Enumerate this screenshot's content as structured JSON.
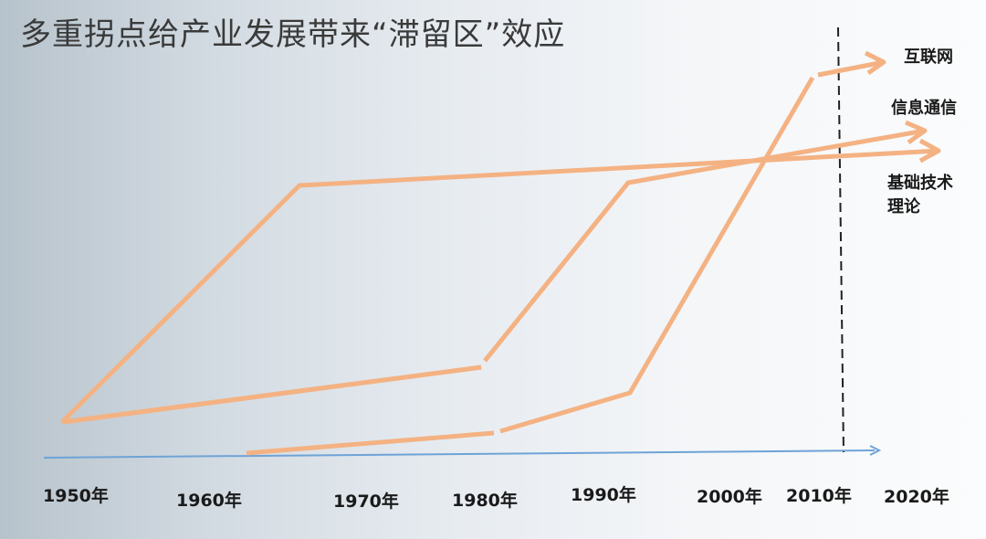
{
  "title": "多重拐点给产业发展带来“滞留区”效应",
  "curve_color": "#f4b283",
  "axis_color": "#6fa3d6",
  "dashed_line_color": "#222222",
  "years": [
    "1950年",
    "1960年",
    "1970年",
    "1980年",
    "1990年",
    "2000年",
    "2010年",
    "2020年"
  ],
  "series_labels": {
    "internet": "互联网",
    "telecom": "信息通信",
    "basic_tech_line1": "基础技术",
    "basic_tech_line2": "理论"
  }
}
